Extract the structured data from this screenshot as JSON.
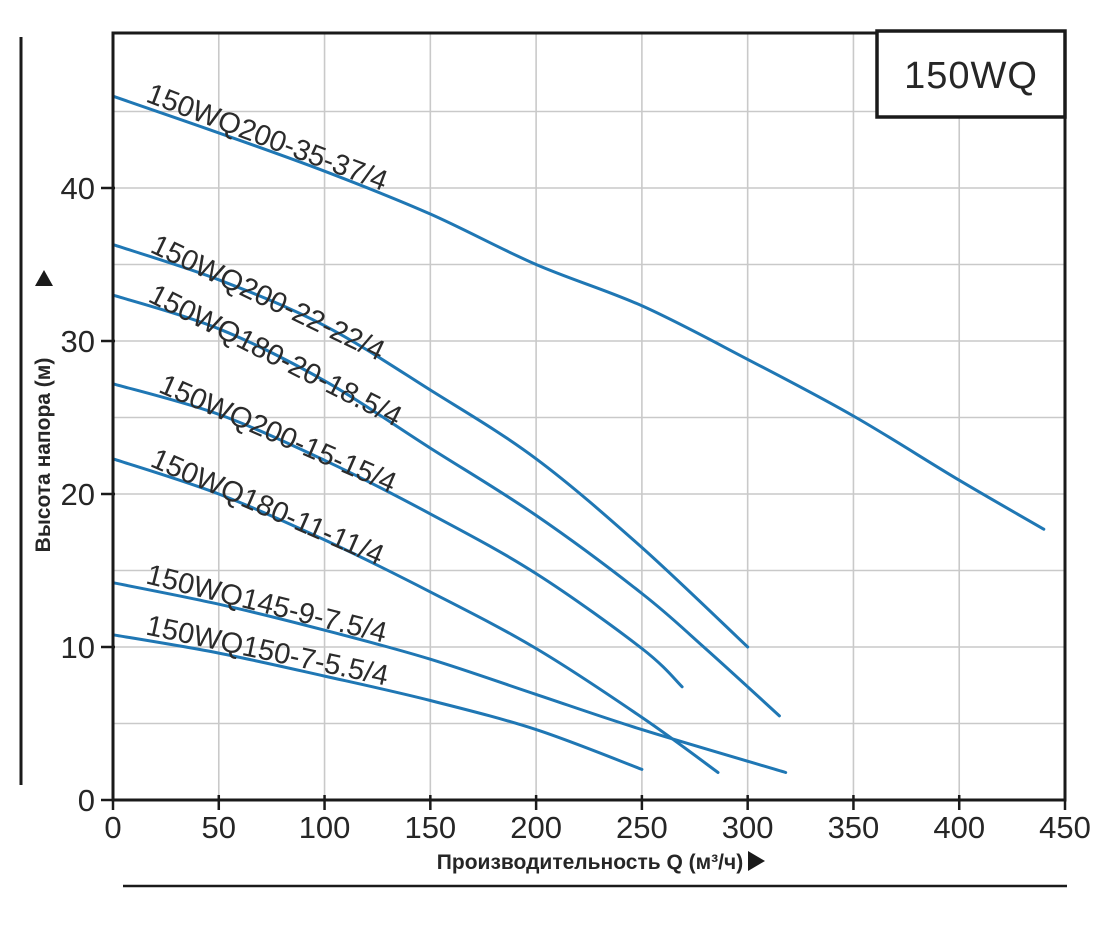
{
  "title_box": {
    "label": "150WQ"
  },
  "axes": {
    "x_title": "Производительность Q (м³/ч)",
    "y_title": "Высота напора (м)",
    "x_tick_labels": [
      "0",
      "50",
      "100",
      "150",
      "200",
      "250",
      "300",
      "350",
      "400",
      "450"
    ],
    "y_tick_labels": [
      "0",
      "10",
      "20",
      "30",
      "40"
    ]
  },
  "colors": {
    "curve": "#1f77b4",
    "grid": "#c9c9c9",
    "axis": "#1a1a1a",
    "text": "#262626"
  },
  "chart_data": {
    "type": "line",
    "title": "150WQ",
    "xlabel": "Производительность Q (м³/ч)",
    "ylabel": "Высота напора (м)",
    "xlim": [
      0,
      450
    ],
    "ylim": [
      0,
      50
    ],
    "x_ticks": [
      0,
      50,
      100,
      150,
      200,
      250,
      300,
      350,
      400,
      450
    ],
    "y_ticks": [
      0,
      10,
      20,
      30,
      40
    ],
    "grid": "on",
    "x_grid_step": 50,
    "y_grid_step": 5,
    "legend_position": "top-right",
    "series": [
      {
        "name": "150WQ200-35-37/4",
        "points": [
          [
            0,
            46.0
          ],
          [
            50,
            43.6
          ],
          [
            100,
            41.1
          ],
          [
            150,
            38.3
          ],
          [
            200,
            35.0
          ],
          [
            250,
            32.3
          ],
          [
            300,
            28.8
          ],
          [
            350,
            25.1
          ],
          [
            400,
            20.9
          ],
          [
            440,
            17.7
          ]
        ]
      },
      {
        "name": "150WQ200-22-22/4",
        "points": [
          [
            0,
            36.3
          ],
          [
            50,
            34.0
          ],
          [
            100,
            31.0
          ],
          [
            150,
            26.8
          ],
          [
            200,
            22.3
          ],
          [
            250,
            16.5
          ],
          [
            300,
            10.0
          ]
        ]
      },
      {
        "name": "150WQ180-20-18.5/4",
        "points": [
          [
            0,
            33.0
          ],
          [
            50,
            30.8
          ],
          [
            100,
            27.4
          ],
          [
            150,
            23.0
          ],
          [
            200,
            18.6
          ],
          [
            250,
            13.5
          ],
          [
            280,
            9.9
          ],
          [
            315,
            5.5
          ]
        ]
      },
      {
        "name": "150WQ200-15-15/4",
        "points": [
          [
            0,
            27.2
          ],
          [
            50,
            25.2
          ],
          [
            100,
            22.2
          ],
          [
            150,
            18.7
          ],
          [
            200,
            14.8
          ],
          [
            250,
            9.9
          ],
          [
            269,
            7.4
          ]
        ]
      },
      {
        "name": "150WQ180-11-11/4",
        "points": [
          [
            0,
            22.3
          ],
          [
            50,
            20.0
          ],
          [
            100,
            17.0
          ],
          [
            150,
            13.6
          ],
          [
            200,
            9.9
          ],
          [
            250,
            5.4
          ],
          [
            286,
            1.8
          ]
        ]
      },
      {
        "name": "150WQ145-9-7.5/4",
        "points": [
          [
            0,
            14.2
          ],
          [
            50,
            12.8
          ],
          [
            100,
            11.1
          ],
          [
            150,
            9.2
          ],
          [
            200,
            6.9
          ],
          [
            250,
            4.6
          ],
          [
            318,
            1.8
          ]
        ]
      },
      {
        "name": "150WQ150-7-5.5/4",
        "points": [
          [
            0,
            10.8
          ],
          [
            50,
            9.6
          ],
          [
            100,
            8.1
          ],
          [
            150,
            6.5
          ],
          [
            200,
            4.6
          ],
          [
            250,
            2.0
          ]
        ]
      }
    ]
  }
}
